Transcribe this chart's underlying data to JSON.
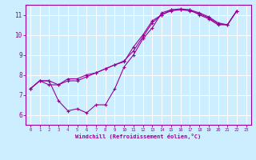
{
  "title": "",
  "xlabel": "Windchill (Refroidissement éolien,°C)",
  "ylabel": "",
  "bg_color": "#cceeff",
  "grid_color": "#ffffff",
  "line_color": "#990099",
  "xlim": [
    -0.5,
    23.5
  ],
  "ylim": [
    5.5,
    11.5
  ],
  "xticks": [
    0,
    1,
    2,
    3,
    4,
    5,
    6,
    7,
    8,
    9,
    10,
    11,
    12,
    13,
    14,
    15,
    16,
    17,
    18,
    19,
    20,
    21,
    22,
    23
  ],
  "yticks": [
    6,
    7,
    8,
    9,
    10,
    11
  ],
  "series": [
    [
      7.3,
      7.7,
      7.7,
      6.7,
      6.2,
      6.3,
      6.1,
      6.5,
      6.5,
      7.3,
      8.4,
      9.0,
      9.8,
      10.35,
      11.1,
      11.25,
      11.25,
      11.25,
      11.1,
      10.9,
      10.6,
      10.5,
      11.2
    ],
    [
      7.3,
      7.7,
      7.7,
      7.5,
      7.8,
      7.8,
      8.0,
      8.1,
      8.3,
      8.5,
      8.65,
      9.4,
      10.0,
      10.7,
      11.0,
      11.2,
      11.25,
      11.2,
      11.05,
      10.85,
      10.55,
      10.5,
      11.2
    ],
    [
      7.3,
      7.7,
      7.5,
      7.5,
      7.7,
      7.7,
      7.9,
      8.1,
      8.3,
      8.5,
      8.7,
      9.2,
      9.9,
      10.6,
      11.0,
      11.25,
      11.3,
      11.25,
      11.0,
      10.8,
      10.5,
      10.5,
      11.2
    ]
  ]
}
